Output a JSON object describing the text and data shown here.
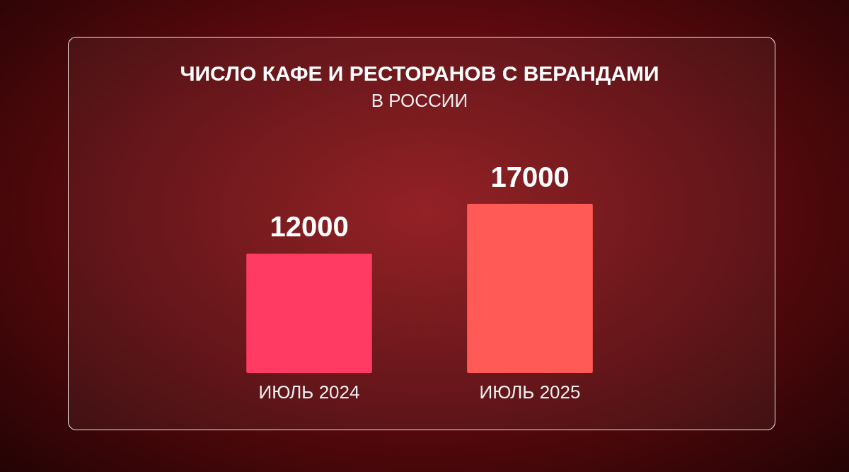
{
  "chart_data": {
    "type": "bar",
    "title": "ЧИСЛО КАФЕ И РЕСТОРАНОВ С ВЕРАНДАМИ",
    "subtitle": "В РОССИИ",
    "categories": [
      "ИЮЛЬ 2024",
      "ИЮЛЬ 2025"
    ],
    "values": [
      12000,
      17000
    ],
    "colors": [
      "#ff3b63",
      "#ff5a55"
    ],
    "data_labels": true
  }
}
